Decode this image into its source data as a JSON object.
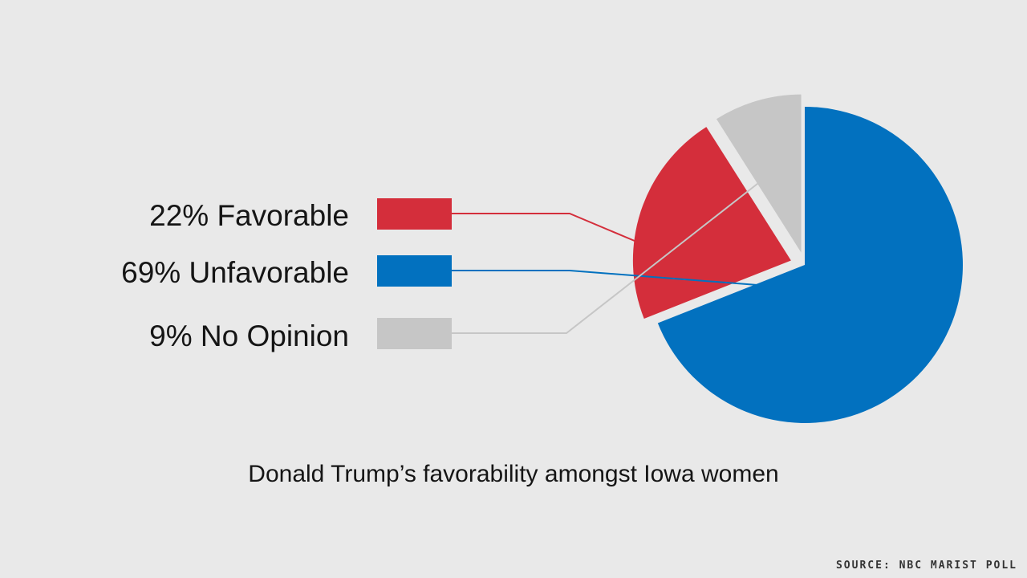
{
  "chart_data": {
    "type": "pie",
    "title": "",
    "slices": [
      {
        "label": "22% Favorable",
        "value": 22,
        "color": "#d42e3b"
      },
      {
        "label": "69% Unfavorable",
        "value": 69,
        "color": "#0271bf"
      },
      {
        "label": "9% No Opinion",
        "value": 9,
        "color": "#c6c6c6"
      }
    ],
    "legend_position": "left"
  },
  "caption": "Donald Trump’s favorability amongst Iowa women",
  "source": "SOURCE: NBC MARIST POLL"
}
